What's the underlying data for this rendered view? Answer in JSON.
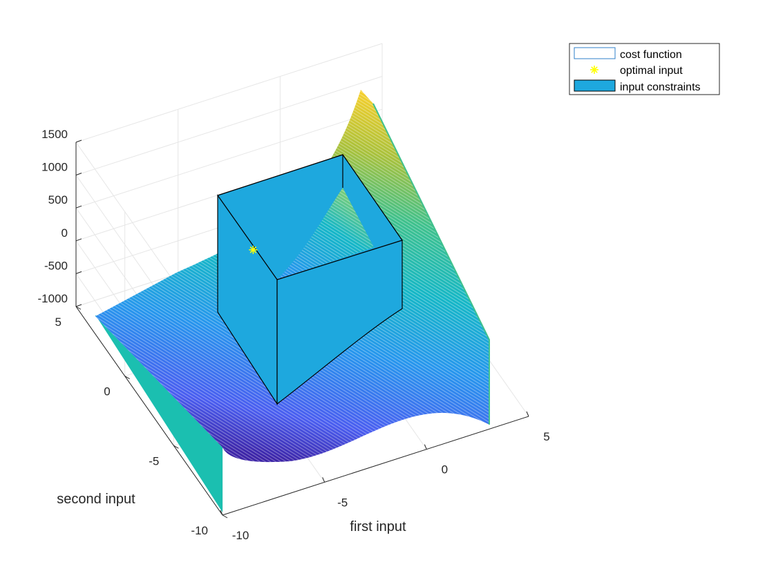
{
  "chart_data": {
    "type": "surface",
    "xlabel": "first input",
    "ylabel": "second input",
    "zlabel": "",
    "x_ticks": [
      "-10",
      "-5",
      "0",
      "5"
    ],
    "y_ticks": [
      "-10",
      "-5",
      "0",
      "5"
    ],
    "z_ticks": [
      "-1000",
      "-500",
      "0",
      "500",
      "1000",
      "1500"
    ],
    "xlim": [
      -10,
      5
    ],
    "ylim": [
      -10,
      5
    ],
    "zlim": [
      -1000,
      1500
    ],
    "grid": true,
    "colormap": [
      "#3e26a8",
      "#4a5ef0",
      "#2797ed",
      "#16b7c7",
      "#3fc18d",
      "#a9c13c",
      "#f9d02c"
    ],
    "legend_position": "top-right outside",
    "series": [
      {
        "name": "cost function",
        "kind": "mesh surface"
      },
      {
        "name": "optimal input",
        "kind": "marker",
        "marker": "*",
        "color": "#ffff00",
        "x": -5,
        "y": 0,
        "z": 0
      },
      {
        "name": "input constraints",
        "kind": "box",
        "color": "#1ea8de"
      }
    ]
  }
}
